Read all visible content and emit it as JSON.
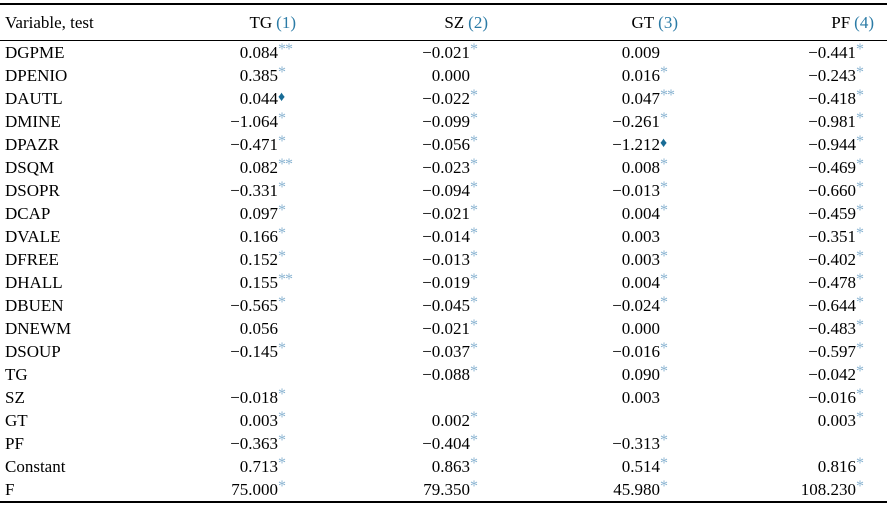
{
  "table": {
    "header": {
      "variable_label": "Variable, test",
      "columns": [
        {
          "name": "TG",
          "num": "(1)"
        },
        {
          "name": "SZ",
          "num": "(2)"
        },
        {
          "name": "GT",
          "num": "(3)"
        },
        {
          "name": "PF",
          "num": "(4)"
        }
      ]
    },
    "rows": [
      {
        "label": "DGPME",
        "cells": [
          {
            "v": "0.084",
            "m": "**"
          },
          {
            "v": "−0.021",
            "m": "*"
          },
          {
            "v": "0.009",
            "m": ""
          },
          {
            "v": "−0.441",
            "m": "*"
          }
        ]
      },
      {
        "label": "DPENIO",
        "cells": [
          {
            "v": "0.385",
            "m": "*"
          },
          {
            "v": "0.000",
            "m": ""
          },
          {
            "v": "0.016",
            "m": "*"
          },
          {
            "v": "−0.243",
            "m": "*"
          }
        ]
      },
      {
        "label": "DAUTL",
        "cells": [
          {
            "v": "0.044",
            "m": "♦"
          },
          {
            "v": "−0.022",
            "m": "*"
          },
          {
            "v": "0.047",
            "m": "**"
          },
          {
            "v": "−0.418",
            "m": "*"
          }
        ]
      },
      {
        "label": "DMINE",
        "cells": [
          {
            "v": "−1.064",
            "m": "*"
          },
          {
            "v": "−0.099",
            "m": "*"
          },
          {
            "v": "−0.261",
            "m": "*"
          },
          {
            "v": "−0.981",
            "m": "*"
          }
        ]
      },
      {
        "label": "DPAZR",
        "cells": [
          {
            "v": "−0.471",
            "m": "*"
          },
          {
            "v": "−0.056",
            "m": "*"
          },
          {
            "v": "−1.212",
            "m": "♦"
          },
          {
            "v": "−0.944",
            "m": "*"
          }
        ]
      },
      {
        "label": "DSQM",
        "cells": [
          {
            "v": "0.082",
            "m": "**"
          },
          {
            "v": "−0.023",
            "m": "*"
          },
          {
            "v": "0.008",
            "m": "*"
          },
          {
            "v": "−0.469",
            "m": "*"
          }
        ]
      },
      {
        "label": "DSOPR",
        "cells": [
          {
            "v": "−0.331",
            "m": "*"
          },
          {
            "v": "−0.094",
            "m": "*"
          },
          {
            "v": "−0.013",
            "m": "*"
          },
          {
            "v": "−0.660",
            "m": "*"
          }
        ]
      },
      {
        "label": "DCAP",
        "cells": [
          {
            "v": "0.097",
            "m": "*"
          },
          {
            "v": "−0.021",
            "m": "*"
          },
          {
            "v": "0.004",
            "m": "*"
          },
          {
            "v": "−0.459",
            "m": "*"
          }
        ]
      },
      {
        "label": "DVALE",
        "cells": [
          {
            "v": "0.166",
            "m": "*"
          },
          {
            "v": "−0.014",
            "m": "*"
          },
          {
            "v": "0.003",
            "m": ""
          },
          {
            "v": "−0.351",
            "m": "*"
          }
        ]
      },
      {
        "label": "DFREE",
        "cells": [
          {
            "v": "0.152",
            "m": "*"
          },
          {
            "v": "−0.013",
            "m": "*"
          },
          {
            "v": "0.003",
            "m": "*"
          },
          {
            "v": "−0.402",
            "m": "*"
          }
        ]
      },
      {
        "label": "DHALL",
        "cells": [
          {
            "v": "0.155",
            "m": "**"
          },
          {
            "v": "−0.019",
            "m": "*"
          },
          {
            "v": "0.004",
            "m": "*"
          },
          {
            "v": "−0.478",
            "m": "*"
          }
        ]
      },
      {
        "label": "DBUEN",
        "cells": [
          {
            "v": "−0.565",
            "m": "*"
          },
          {
            "v": "−0.045",
            "m": "*"
          },
          {
            "v": "−0.024",
            "m": "*"
          },
          {
            "v": "−0.644",
            "m": "*"
          }
        ]
      },
      {
        "label": "DNEWM",
        "cells": [
          {
            "v": "0.056",
            "m": ""
          },
          {
            "v": "−0.021",
            "m": "*"
          },
          {
            "v": "0.000",
            "m": ""
          },
          {
            "v": "−0.483",
            "m": "*"
          }
        ]
      },
      {
        "label": "DSOUP",
        "cells": [
          {
            "v": "−0.145",
            "m": "*"
          },
          {
            "v": "−0.037",
            "m": "*"
          },
          {
            "v": "−0.016",
            "m": "*"
          },
          {
            "v": "−0.597",
            "m": "*"
          }
        ]
      },
      {
        "label": "TG",
        "cells": [
          {
            "v": "",
            "m": ""
          },
          {
            "v": "−0.088",
            "m": "*"
          },
          {
            "v": "0.090",
            "m": "*"
          },
          {
            "v": "−0.042",
            "m": "*"
          }
        ]
      },
      {
        "label": "SZ",
        "cells": [
          {
            "v": "−0.018",
            "m": "*"
          },
          {
            "v": "",
            "m": ""
          },
          {
            "v": "0.003",
            "m": ""
          },
          {
            "v": "−0.016",
            "m": "*"
          }
        ]
      },
      {
        "label": "GT",
        "cells": [
          {
            "v": "0.003",
            "m": "*"
          },
          {
            "v": "0.002",
            "m": "*"
          },
          {
            "v": "",
            "m": ""
          },
          {
            "v": "0.003",
            "m": "*"
          }
        ]
      },
      {
        "label": "PF",
        "cells": [
          {
            "v": "−0.363",
            "m": "*"
          },
          {
            "v": "−0.404",
            "m": "*"
          },
          {
            "v": "−0.313",
            "m": "*"
          },
          {
            "v": "",
            "m": ""
          }
        ]
      },
      {
        "label": "Constant",
        "cells": [
          {
            "v": "0.713",
            "m": "*"
          },
          {
            "v": "0.863",
            "m": "*"
          },
          {
            "v": "0.514",
            "m": "*"
          },
          {
            "v": "0.816",
            "m": "*"
          }
        ]
      },
      {
        "label": "F",
        "cells": [
          {
            "v": "75.000",
            "m": "*"
          },
          {
            "v": "79.350",
            "m": "*"
          },
          {
            "v": "45.980",
            "m": "*"
          },
          {
            "v": "108.230",
            "m": "*"
          }
        ]
      }
    ],
    "colors": {
      "accent_blue": "#2b7ba6",
      "marker_blue": "#89b3d1",
      "diamond_blue": "#186c96"
    },
    "marker_glyphs": {
      "asterisk": "*",
      "double_asterisk": "**",
      "diamond": "♦"
    }
  }
}
